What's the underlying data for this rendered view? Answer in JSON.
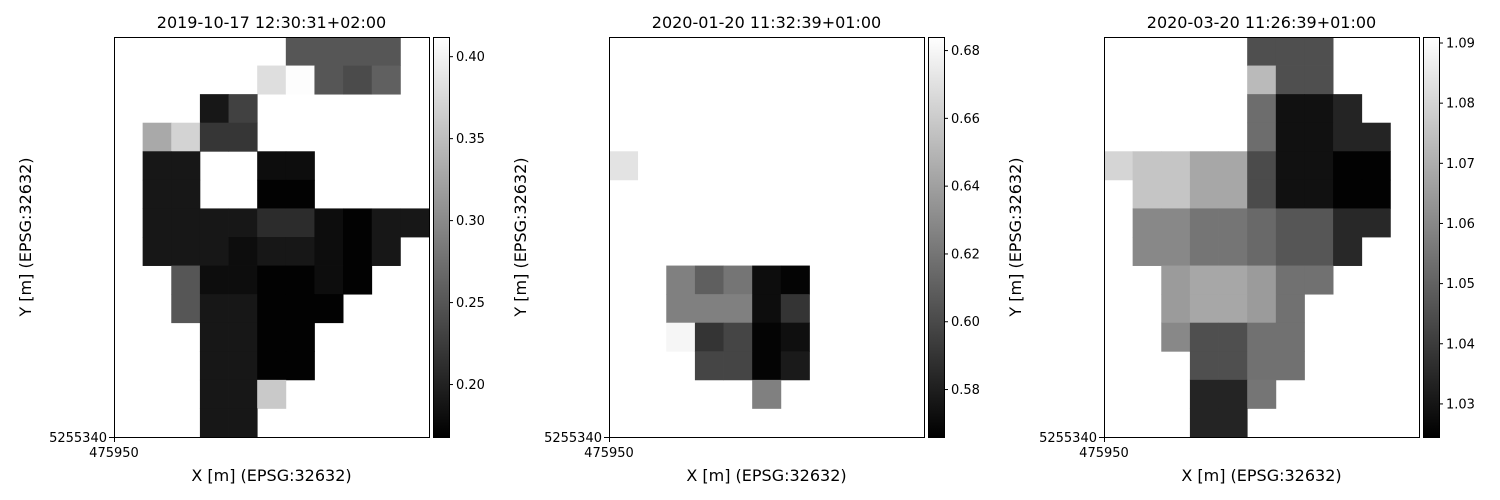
{
  "chart_data": [
    {
      "type": "heatmap",
      "title": "2019-10-17 12:30:31+02:00",
      "xlabel": "X [m] (EPSG:32632)",
      "ylabel": "Y [m] (EPSG:32632)",
      "x_tick_labels": [
        "475950"
      ],
      "y_tick_labels": [
        "5255340"
      ],
      "colormap": "gray",
      "colorbar": {
        "min": 0.168,
        "max": 0.412,
        "ticks": [
          0.2,
          0.25,
          0.3,
          0.35,
          0.4
        ],
        "tick_labels": [
          "0.20",
          "0.25",
          "0.30",
          "0.35",
          "0.40"
        ]
      },
      "grid": [
        [
          null,
          null,
          null,
          null,
          null,
          null,
          0.25,
          0.25,
          0.25,
          0.25,
          null
        ],
        [
          null,
          null,
          null,
          null,
          null,
          0.38,
          0.41,
          0.25,
          0.24,
          0.26,
          null
        ],
        [
          null,
          null,
          null,
          0.19,
          0.23,
          null,
          null,
          null,
          null,
          null,
          null
        ],
        [
          null,
          0.33,
          0.37,
          0.22,
          0.22,
          null,
          null,
          null,
          null,
          null,
          null
        ],
        [
          null,
          0.19,
          0.19,
          null,
          null,
          0.18,
          0.18,
          null,
          null,
          null,
          null
        ],
        [
          null,
          0.19,
          0.19,
          null,
          null,
          0.17,
          0.17,
          null,
          null,
          null,
          null
        ],
        [
          null,
          0.19,
          0.19,
          0.19,
          0.19,
          0.21,
          0.21,
          0.18,
          0.17,
          0.19,
          0.19
        ],
        [
          null,
          0.19,
          0.19,
          0.19,
          0.18,
          0.19,
          0.19,
          0.18,
          0.17,
          0.19,
          null
        ],
        [
          null,
          null,
          0.25,
          0.18,
          0.18,
          0.17,
          0.17,
          0.18,
          0.17,
          null,
          null
        ],
        [
          null,
          null,
          0.25,
          0.19,
          0.19,
          0.17,
          0.17,
          0.17,
          null,
          null,
          null
        ],
        [
          null,
          null,
          null,
          0.19,
          0.19,
          0.17,
          0.17,
          null,
          null,
          null,
          null
        ],
        [
          null,
          null,
          null,
          0.19,
          0.19,
          0.17,
          0.17,
          null,
          null,
          null,
          null
        ],
        [
          null,
          null,
          null,
          0.19,
          0.19,
          0.36,
          null,
          null,
          null,
          null,
          null
        ],
        [
          null,
          null,
          null,
          0.19,
          0.19,
          null,
          null,
          null,
          null,
          null,
          null
        ]
      ]
    },
    {
      "type": "heatmap",
      "title": "2020-01-20 11:32:39+01:00",
      "xlabel": "X [m] (EPSG:32632)",
      "ylabel": "Y [m] (EPSG:32632)",
      "x_tick_labels": [
        "475950"
      ],
      "y_tick_labels": [
        "5255340"
      ],
      "colormap": "gray",
      "colorbar": {
        "min": 0.566,
        "max": 0.684,
        "ticks": [
          0.58,
          0.6,
          0.62,
          0.64,
          0.66,
          0.68
        ],
        "tick_labels": [
          "0.58",
          "0.60",
          "0.62",
          "0.64",
          "0.66",
          "0.68"
        ]
      },
      "grid": [
        [
          null,
          null,
          null,
          null,
          null,
          null,
          null,
          null,
          null,
          null,
          null
        ],
        [
          null,
          null,
          null,
          null,
          null,
          null,
          null,
          null,
          null,
          null,
          null
        ],
        [
          null,
          null,
          null,
          null,
          null,
          null,
          null,
          null,
          null,
          null,
          null
        ],
        [
          null,
          null,
          null,
          null,
          null,
          null,
          null,
          null,
          null,
          null,
          null
        ],
        [
          0.671,
          null,
          null,
          null,
          null,
          null,
          null,
          null,
          null,
          null,
          null
        ],
        [
          null,
          null,
          null,
          null,
          null,
          null,
          null,
          null,
          null,
          null,
          null
        ],
        [
          null,
          null,
          null,
          null,
          null,
          null,
          null,
          null,
          null,
          null,
          null
        ],
        [
          null,
          null,
          null,
          null,
          null,
          null,
          null,
          null,
          null,
          null,
          null
        ],
        [
          null,
          null,
          0.625,
          0.61,
          0.62,
          0.572,
          0.568,
          null,
          null,
          null,
          null
        ],
        [
          null,
          null,
          0.625,
          0.625,
          0.625,
          0.572,
          0.59,
          null,
          null,
          null,
          null
        ],
        [
          null,
          null,
          0.68,
          0.59,
          0.598,
          0.568,
          0.573,
          null,
          null,
          null,
          null
        ],
        [
          null,
          null,
          null,
          0.598,
          0.598,
          0.568,
          0.578,
          null,
          null,
          null,
          null
        ],
        [
          null,
          null,
          null,
          null,
          null,
          0.625,
          null,
          null,
          null,
          null,
          null
        ],
        [
          null,
          null,
          null,
          null,
          null,
          null,
          null,
          null,
          null,
          null,
          null
        ]
      ]
    },
    {
      "type": "heatmap",
      "title": "2020-03-20 11:26:39+01:00",
      "xlabel": "X [m] (EPSG:32632)",
      "ylabel": "Y [m] (EPSG:32632)",
      "x_tick_labels": [
        "475950"
      ],
      "y_tick_labels": [
        "5255340"
      ],
      "colormap": "gray",
      "colorbar": {
        "min": 1.0245,
        "max": 1.091,
        "ticks": [
          1.03,
          1.04,
          1.05,
          1.06,
          1.07,
          1.08,
          1.09
        ],
        "tick_labels": [
          "1.03",
          "1.04",
          "1.05",
          "1.06",
          "1.07",
          "1.08",
          "1.09"
        ]
      },
      "grid": [
        [
          null,
          null,
          null,
          null,
          null,
          1.045,
          1.045,
          1.045,
          null,
          null,
          null
        ],
        [
          null,
          null,
          null,
          null,
          null,
          1.073,
          1.045,
          1.045,
          null,
          null,
          null
        ],
        [
          null,
          null,
          null,
          null,
          null,
          1.053,
          1.029,
          1.029,
          1.034,
          null,
          null
        ],
        [
          null,
          null,
          null,
          null,
          null,
          1.053,
          1.029,
          1.029,
          1.034,
          1.034,
          null
        ],
        [
          1.08,
          1.076,
          1.076,
          1.068,
          1.068,
          1.044,
          1.029,
          1.029,
          1.025,
          1.025,
          null
        ],
        [
          null,
          1.076,
          1.076,
          1.068,
          1.068,
          1.044,
          1.029,
          1.029,
          1.025,
          1.025,
          null
        ],
        [
          null,
          1.06,
          1.06,
          1.055,
          1.055,
          1.052,
          1.047,
          1.047,
          1.035,
          1.035,
          null
        ],
        [
          null,
          1.06,
          1.06,
          1.055,
          1.055,
          1.052,
          1.047,
          1.047,
          1.035,
          null,
          null
        ],
        [
          null,
          null,
          1.065,
          1.068,
          1.068,
          1.065,
          1.054,
          1.054,
          null,
          null,
          null
        ],
        [
          null,
          null,
          1.065,
          1.068,
          1.068,
          1.065,
          1.054,
          null,
          null,
          null,
          null
        ],
        [
          null,
          null,
          1.06,
          1.045,
          1.045,
          1.054,
          1.054,
          null,
          null,
          null,
          null
        ],
        [
          null,
          null,
          null,
          1.045,
          1.045,
          1.054,
          1.054,
          null,
          null,
          null,
          null
        ],
        [
          null,
          null,
          null,
          1.034,
          1.034,
          1.055,
          null,
          null,
          null,
          null,
          null
        ],
        [
          null,
          null,
          null,
          1.034,
          1.034,
          null,
          null,
          null,
          null,
          null,
          null
        ]
      ]
    }
  ]
}
